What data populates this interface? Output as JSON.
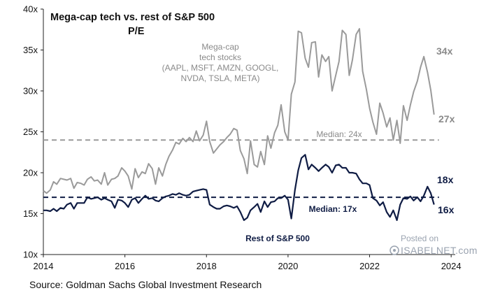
{
  "chart_data": {
    "type": "line",
    "title": "Mega-cap tech vs. rest of S&P 500",
    "subtitle": "P/E",
    "xlabel": "",
    "ylabel": "",
    "xlim": [
      2014.0,
      2024.1
    ],
    "ylim": [
      10,
      40
    ],
    "x_ticks": [
      2014,
      2016,
      2018,
      2020,
      2022,
      2024
    ],
    "y_ticks": [
      10,
      15,
      20,
      25,
      30,
      35,
      40
    ],
    "y_tick_suffix": "x",
    "grid": false,
    "series": [
      {
        "name": "Mega-cap tech stocks",
        "color": "#9a9a9a",
        "x": [
          2014.0,
          2014.08,
          2014.17,
          2014.25,
          2014.33,
          2014.42,
          2014.5,
          2014.58,
          2014.67,
          2014.75,
          2014.83,
          2014.92,
          2015.0,
          2015.08,
          2015.17,
          2015.25,
          2015.33,
          2015.42,
          2015.5,
          2015.58,
          2015.67,
          2015.75,
          2015.83,
          2015.92,
          2016.0,
          2016.08,
          2016.17,
          2016.25,
          2016.33,
          2016.42,
          2016.5,
          2016.58,
          2016.67,
          2016.75,
          2016.83,
          2016.92,
          2017.0,
          2017.08,
          2017.17,
          2017.25,
          2017.33,
          2017.42,
          2017.5,
          2017.58,
          2017.67,
          2017.75,
          2017.83,
          2017.92,
          2018.0,
          2018.08,
          2018.17,
          2018.25,
          2018.33,
          2018.42,
          2018.5,
          2018.58,
          2018.67,
          2018.75,
          2018.83,
          2018.92,
          2019.0,
          2019.08,
          2019.17,
          2019.25,
          2019.33,
          2019.42,
          2019.5,
          2019.58,
          2019.67,
          2019.75,
          2019.83,
          2019.92,
          2020.0,
          2020.08,
          2020.17,
          2020.25,
          2020.33,
          2020.42,
          2020.5,
          2020.58,
          2020.67,
          2020.75,
          2020.83,
          2020.92,
          2021.0,
          2021.08,
          2021.17,
          2021.25,
          2021.33,
          2021.42,
          2021.5,
          2021.58,
          2021.67,
          2021.75,
          2021.83,
          2021.92,
          2022.0,
          2022.08,
          2022.17,
          2022.25,
          2022.33,
          2022.42,
          2022.5,
          2022.58,
          2022.67,
          2022.75,
          2022.83,
          2022.92,
          2023.0,
          2023.08,
          2023.17,
          2023.25,
          2023.33,
          2023.42,
          2023.5,
          2023.58
        ],
        "values": [
          17.8,
          17.5,
          17.9,
          18.9,
          18.6,
          19.3,
          19.2,
          19.1,
          19.3,
          18.1,
          18.8,
          18.7,
          18.5,
          19.2,
          19.5,
          19.0,
          19.1,
          18.6,
          20.0,
          18.5,
          19.2,
          19.3,
          19.6,
          20.6,
          20.2,
          19.6,
          18.0,
          20.5,
          19.4,
          20.1,
          19.9,
          21.1,
          20.5,
          18.6,
          20.6,
          19.6,
          21.0,
          22.0,
          22.8,
          23.7,
          23.5,
          24.2,
          23.8,
          24.3,
          23.8,
          25.1,
          23.9,
          24.6,
          26.3,
          23.8,
          22.4,
          22.9,
          23.4,
          23.8,
          24.3,
          24.7,
          25.4,
          25.2,
          22.7,
          21.7,
          19.9,
          23.9,
          21.0,
          20.7,
          22.6,
          21.0,
          24.5,
          23.0,
          24.9,
          25.8,
          28.3,
          25.0,
          24.0,
          29.6,
          31.1,
          37.3,
          37.1,
          34.0,
          32.9,
          35.9,
          36.0,
          31.7,
          34.4,
          33.6,
          34.2,
          30.0,
          31.9,
          33.6,
          37.4,
          36.9,
          31.9,
          33.8,
          36.9,
          37.6,
          32.4,
          30.2,
          27.9,
          26.2,
          24.7,
          28.5,
          27.3,
          25.6,
          26.7,
          24.0,
          26.4,
          23.6,
          28.2,
          26.4,
          28.3,
          29.9,
          31.2,
          32.9,
          34.2,
          32.3,
          30.1,
          27.1
        ]
      },
      {
        "name": "Rest of S&P 500",
        "color": "#0f1c44",
        "x": [
          2014.0,
          2014.08,
          2014.17,
          2014.25,
          2014.33,
          2014.42,
          2014.5,
          2014.58,
          2014.67,
          2014.75,
          2014.83,
          2014.92,
          2015.0,
          2015.08,
          2015.17,
          2015.25,
          2015.33,
          2015.42,
          2015.5,
          2015.58,
          2015.67,
          2015.75,
          2015.83,
          2015.92,
          2016.0,
          2016.08,
          2016.17,
          2016.25,
          2016.33,
          2016.42,
          2016.5,
          2016.58,
          2016.67,
          2016.75,
          2016.83,
          2016.92,
          2017.0,
          2017.08,
          2017.17,
          2017.25,
          2017.33,
          2017.42,
          2017.5,
          2017.58,
          2017.67,
          2017.75,
          2017.83,
          2017.92,
          2018.0,
          2018.08,
          2018.17,
          2018.25,
          2018.33,
          2018.42,
          2018.5,
          2018.58,
          2018.67,
          2018.75,
          2018.83,
          2018.92,
          2019.0,
          2019.08,
          2019.17,
          2019.25,
          2019.33,
          2019.42,
          2019.5,
          2019.58,
          2019.67,
          2019.75,
          2019.83,
          2019.92,
          2020.0,
          2020.08,
          2020.17,
          2020.25,
          2020.33,
          2020.42,
          2020.5,
          2020.58,
          2020.67,
          2020.75,
          2020.83,
          2020.92,
          2021.0,
          2021.08,
          2021.17,
          2021.25,
          2021.33,
          2021.42,
          2021.5,
          2021.58,
          2021.67,
          2021.75,
          2021.83,
          2021.92,
          2022.0,
          2022.08,
          2022.17,
          2022.25,
          2022.33,
          2022.42,
          2022.5,
          2022.58,
          2022.67,
          2022.75,
          2022.83,
          2022.92,
          2023.0,
          2023.08,
          2023.17,
          2023.25,
          2023.33,
          2023.42,
          2023.5,
          2023.58
        ],
        "values": [
          15.4,
          15.4,
          15.3,
          15.6,
          15.3,
          15.7,
          15.6,
          16.1,
          16.3,
          15.6,
          16.3,
          16.3,
          16.3,
          17.0,
          16.8,
          16.9,
          17.0,
          16.7,
          16.9,
          16.7,
          16.5,
          15.7,
          16.7,
          16.6,
          16.3,
          15.8,
          16.7,
          16.9,
          16.3,
          16.8,
          17.2,
          16.8,
          16.9,
          16.6,
          16.5,
          16.9,
          17.1,
          17.2,
          17.4,
          17.3,
          17.5,
          17.3,
          17.2,
          17.3,
          17.7,
          17.8,
          17.9,
          18.0,
          17.9,
          16.1,
          15.8,
          15.6,
          15.6,
          15.9,
          16.0,
          15.9,
          15.7,
          15.9,
          15.2,
          14.2,
          14.5,
          15.4,
          15.8,
          16.2,
          15.2,
          16.5,
          15.8,
          16.4,
          16.5,
          16.9,
          16.9,
          17.2,
          16.7,
          14.4,
          17.9,
          20.3,
          21.8,
          22.2,
          20.4,
          21.0,
          20.6,
          20.2,
          20.6,
          21.0,
          20.7,
          20.0,
          20.9,
          21.0,
          20.6,
          20.6,
          20.0,
          20.0,
          19.9,
          19.2,
          18.7,
          18.7,
          18.5,
          16.9,
          16.6,
          16.0,
          16.4,
          15.2,
          14.6,
          15.4,
          14.2,
          16.1,
          16.9,
          16.8,
          17.1,
          16.6,
          17.0,
          16.5,
          17.2,
          18.3,
          17.5,
          16.1
        ]
      }
    ],
    "medians": [
      {
        "series": "Mega-cap tech stocks",
        "value": 24,
        "label": "Median: 24x",
        "color": "#9a9a9a"
      },
      {
        "series": "Rest of S&P 500",
        "value": 17,
        "label": "Median: 17x",
        "color": "#0f1c44"
      }
    ],
    "annotations": {
      "mega_label_lines": [
        "Mega-cap",
        "tech stocks",
        "(AAPL, MSFT, AMZN, GOOGL,",
        "NVDA, TSLA, META)"
      ],
      "rest_label": "Rest of S&P 500",
      "mega_peak": "34x",
      "mega_last": "27x",
      "rest_peak": "18x",
      "rest_last": "16x"
    }
  },
  "source": "Source: Goldman Sachs Global Investment Research",
  "watermark": {
    "line1": "Posted on",
    "line2": "ISABELNET.com"
  }
}
